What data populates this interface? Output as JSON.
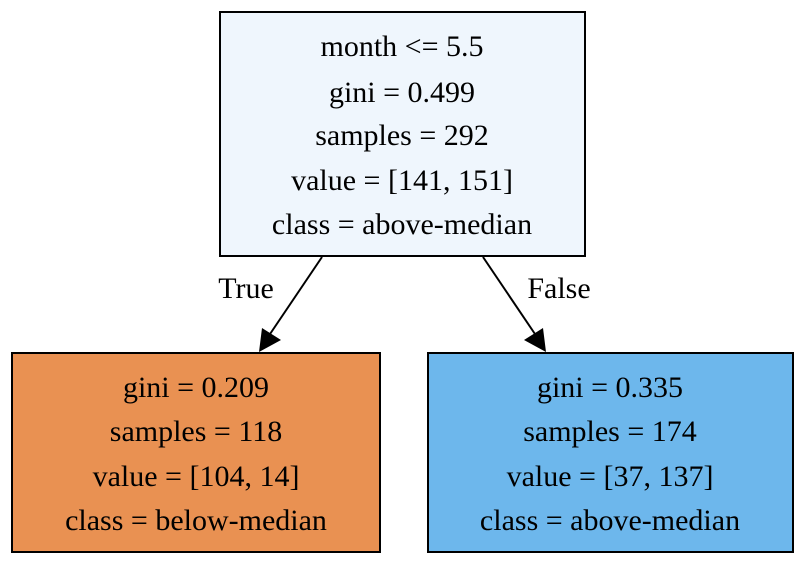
{
  "tree": {
    "root": {
      "lines": [
        "month <= 5.5",
        "gini = 0.499",
        "samples = 292",
        "value = [141, 151]",
        "class = above-median"
      ],
      "fill": "#eff6fd"
    },
    "left": {
      "lines": [
        "gini = 0.209",
        "samples = 118",
        "value = [104, 14]",
        "class = below-median"
      ],
      "fill": "#e99152"
    },
    "right": {
      "lines": [
        "gini = 0.335",
        "samples = 174",
        "value = [37, 137]",
        "class = above-median"
      ],
      "fill": "#6db7ec"
    },
    "edges": {
      "true_label": "True",
      "false_label": "False"
    }
  }
}
